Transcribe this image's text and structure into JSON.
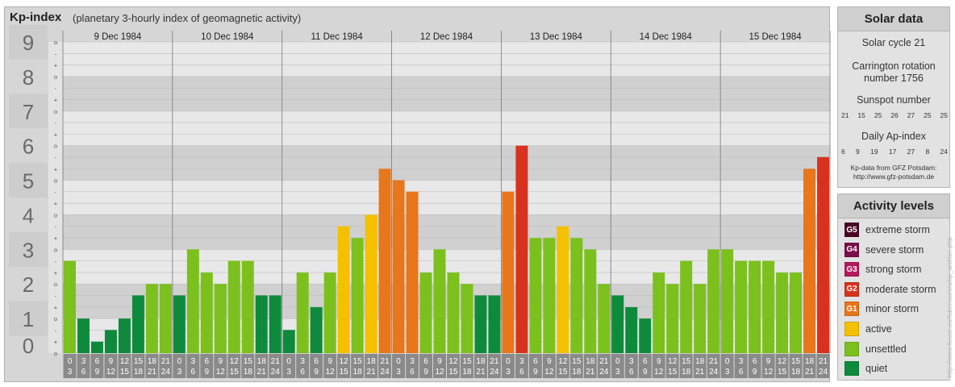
{
  "chart_data": {
    "type": "bar",
    "title": "Kp-index",
    "subtitle": "(planetary 3-hourly index of geomagnetic activity)",
    "days": [
      "9 Dec 1984",
      "10 Dec 1984",
      "11 Dec 1984",
      "12 Dec 1984",
      "13 Dec 1984",
      "14 Dec 1984",
      "15 Dec 1984"
    ],
    "y_ticks": [
      "0",
      "1",
      "2",
      "3",
      "4",
      "5",
      "6",
      "7",
      "8",
      "9"
    ],
    "y_sub_labels": [
      "o",
      "+",
      "-",
      "o",
      "+",
      "-",
      "o",
      "+",
      "-",
      "o",
      "+",
      "-",
      "o",
      "+",
      "-",
      "o",
      "+",
      "-",
      "o",
      "+",
      "-",
      "o",
      "+",
      "-",
      "o",
      "+",
      "-",
      "o"
    ],
    "hour_starts": [
      "0",
      "3",
      "6",
      "9",
      "12",
      "15",
      "18",
      "21"
    ],
    "hour_ends": [
      "3",
      "6",
      "9",
      "12",
      "15",
      "18",
      "21",
      "24"
    ],
    "ylim": [
      0,
      9
    ],
    "grid": true,
    "values": [
      2.67,
      1.0,
      0.33,
      0.67,
      1.0,
      1.67,
      2.0,
      2.0,
      1.67,
      3.0,
      2.33,
      2.0,
      2.67,
      2.67,
      1.67,
      1.67,
      0.67,
      2.33,
      1.33,
      2.33,
      3.67,
      3.33,
      4.0,
      5.33,
      5.0,
      4.67,
      2.33,
      3.0,
      2.33,
      2.0,
      1.67,
      1.67,
      4.67,
      6.0,
      3.33,
      3.33,
      3.67,
      3.33,
      3.0,
      2.0,
      1.67,
      1.33,
      1.0,
      2.33,
      2.0,
      2.67,
      2.0,
      3.0,
      3.0,
      2.67,
      2.67,
      2.67,
      2.33,
      2.33,
      5.33,
      5.67
    ],
    "color_thresholds": [
      {
        "min": 0,
        "max": 1.67,
        "level": "quiet"
      },
      {
        "min": 2,
        "max": 3.33,
        "level": "unsettled"
      },
      {
        "min": 3.67,
        "max": 4.33,
        "level": "active"
      },
      {
        "min": 4.67,
        "max": 5.33,
        "level": "minor storm"
      },
      {
        "min": 5.67,
        "max": 6.33,
        "level": "moderate storm"
      }
    ]
  },
  "colors": {
    "quiet": "#0e8a3c",
    "unsettled": "#7cc01e",
    "active": "#f5c000",
    "minor_storm": "#e8761a",
    "moderate_storm": "#d8321e",
    "strong_storm": "#b5195d",
    "severe_storm": "#7a0f4a",
    "extreme_storm": "#4a0826"
  },
  "solar": {
    "title": "Solar data",
    "cycle": "Solar cycle 21",
    "carrington_1": "Carrington rotation",
    "carrington_2": "number 1756",
    "sunspot_title": "Sunspot number",
    "sunspot_numbers": [
      "21",
      "15",
      "25",
      "26",
      "27",
      "25",
      "25"
    ],
    "ap_title": "Daily Ap-index",
    "ap_numbers": [
      "6",
      "9",
      "19",
      "17",
      "27",
      "8",
      "24"
    ],
    "credit_1": "Kp-data from GFZ Potsdam:",
    "credit_2": "http://www.gfz-potsdam.de"
  },
  "activity": {
    "title": "Activity levels",
    "levels": [
      {
        "badge": "G5",
        "label": "extreme storm",
        "color": "#4a0826"
      },
      {
        "badge": "G4",
        "label": "severe storm",
        "color": "#7a0f4a"
      },
      {
        "badge": "G3",
        "label": "strong storm",
        "color": "#b5195d"
      },
      {
        "badge": "G2",
        "label": "moderate storm",
        "color": "#d8321e"
      },
      {
        "badge": "G1",
        "label": "minor storm",
        "color": "#e8761a"
      },
      {
        "badge": "",
        "label": "active",
        "color": "#f5c000"
      },
      {
        "badge": "",
        "label": "unsettled",
        "color": "#7cc01e"
      },
      {
        "badge": "",
        "label": "quiet",
        "color": "#0e8a3c"
      }
    ]
  },
  "watermark": "http://www.fleuse.eu/faber/aurora/kp_archive.php"
}
